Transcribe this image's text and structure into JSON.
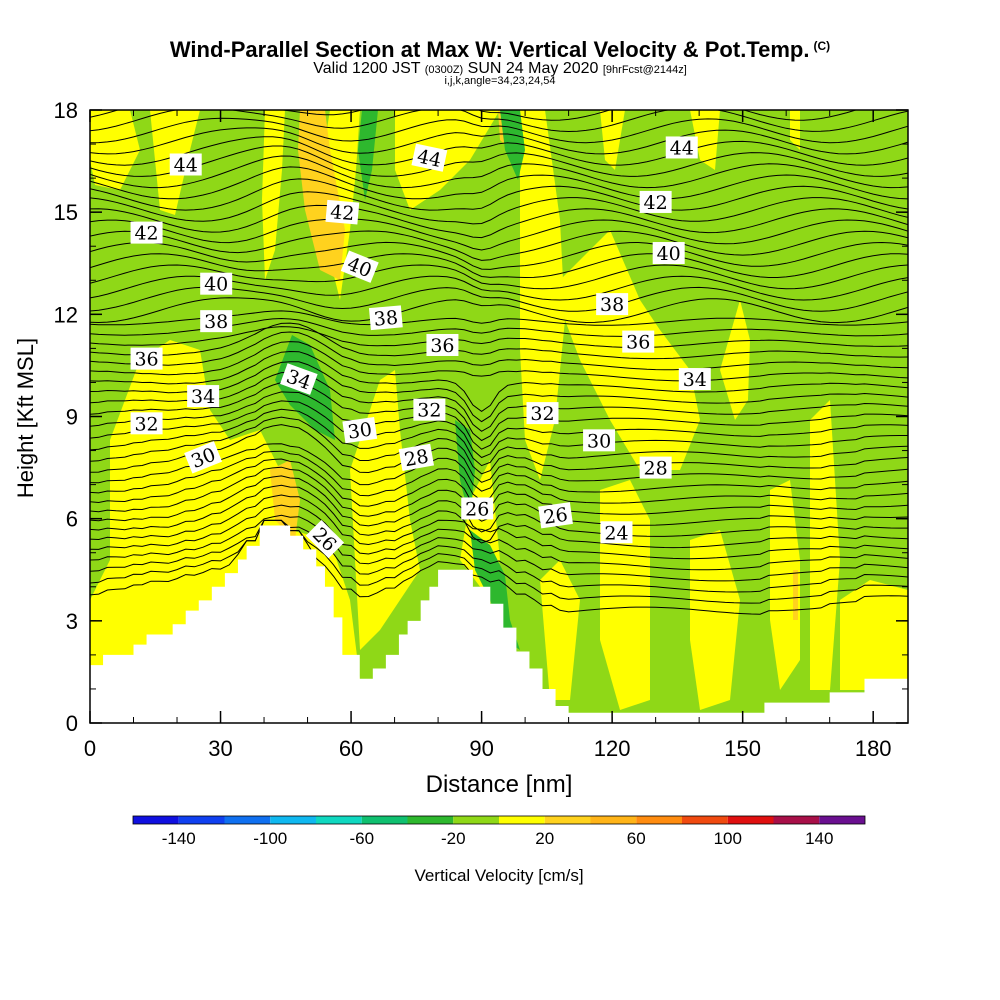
{
  "title": {
    "main": "Wind-Parallel Section at Max W: Vertical Velocity & Pot.Temp.",
    "main_tag": "(C)",
    "valid_prefix": "Valid 1200 JST",
    "valid_utc": "(0300Z)",
    "valid_date": "SUN 24 May 2020",
    "forecast": "[9hrFcst@2144z]",
    "indices": "i,j,k,angle=34,23,24,54"
  },
  "chart_data": {
    "type": "contour",
    "xlabel": "Distance [nm]",
    "ylabel": "Height [Kft MSL]",
    "xlim": [
      0,
      188
    ],
    "ylim": [
      0,
      18
    ],
    "x_ticks": [
      "0",
      "30",
      "60",
      "90",
      "120",
      "150",
      "180"
    ],
    "y_ticks": [
      "0",
      "3",
      "6",
      "9",
      "12",
      "15",
      "18"
    ],
    "colorbar": {
      "label": "Vertical Velocity [cm/s]",
      "ticks": [
        "-140",
        "-100",
        "-60",
        "-20",
        "20",
        "60",
        "100",
        "140"
      ],
      "bins": [
        {
          "from": -160,
          "to": -140,
          "color": "#1010e0"
        },
        {
          "from": -140,
          "to": -120,
          "color": "#1040f0"
        },
        {
          "from": -120,
          "to": -100,
          "color": "#1070f0"
        },
        {
          "from": -100,
          "to": -80,
          "color": "#10b8f0"
        },
        {
          "from": -80,
          "to": -60,
          "color": "#10d8c0"
        },
        {
          "from": -60,
          "to": -40,
          "color": "#10c070"
        },
        {
          "from": -40,
          "to": -20,
          "color": "#2eb82e"
        },
        {
          "from": -20,
          "to": 0,
          "color": "#8fd817"
        },
        {
          "from": 0,
          "to": 20,
          "color": "#ffff00"
        },
        {
          "from": 20,
          "to": 40,
          "color": "#ffd21e"
        },
        {
          "from": 40,
          "to": 60,
          "color": "#ffb418"
        },
        {
          "from": 60,
          "to": 80,
          "color": "#ff8c10"
        },
        {
          "from": 80,
          "to": 100,
          "color": "#f04a10"
        },
        {
          "from": 100,
          "to": 120,
          "color": "#e01010"
        },
        {
          "from": 120,
          "to": 140,
          "color": "#a81048"
        },
        {
          "from": 140,
          "to": 160,
          "color": "#6a1090"
        }
      ]
    },
    "terrain_height_kft": [
      [
        0,
        1.7
      ],
      [
        3,
        1.7
      ],
      [
        3,
        2.0
      ],
      [
        10,
        2.0
      ],
      [
        10,
        2.3
      ],
      [
        13,
        2.3
      ],
      [
        13,
        2.6
      ],
      [
        19,
        2.6
      ],
      [
        19,
        2.9
      ],
      [
        22,
        2.9
      ],
      [
        22,
        3.3
      ],
      [
        25,
        3.3
      ],
      [
        25,
        3.6
      ],
      [
        28,
        3.6
      ],
      [
        28,
        4.0
      ],
      [
        31,
        4.0
      ],
      [
        31,
        4.4
      ],
      [
        34,
        4.4
      ],
      [
        34,
        4.8
      ],
      [
        36,
        4.8
      ],
      [
        36,
        5.2
      ],
      [
        39,
        5.2
      ],
      [
        39,
        5.8
      ],
      [
        46,
        5.8
      ],
      [
        46,
        5.5
      ],
      [
        49,
        5.5
      ],
      [
        49,
        5.1
      ],
      [
        52,
        5.1
      ],
      [
        52,
        4.6
      ],
      [
        54,
        4.6
      ],
      [
        54,
        4.0
      ],
      [
        56,
        4.0
      ],
      [
        56,
        3.1
      ],
      [
        58,
        3.1
      ],
      [
        58,
        2.0
      ],
      [
        62,
        2.0
      ],
      [
        62,
        1.3
      ],
      [
        65,
        1.3
      ],
      [
        65,
        1.6
      ],
      [
        68,
        1.6
      ],
      [
        68,
        2.0
      ],
      [
        71,
        2.0
      ],
      [
        71,
        2.6
      ],
      [
        73,
        2.6
      ],
      [
        73,
        3.0
      ],
      [
        76,
        3.0
      ],
      [
        76,
        3.6
      ],
      [
        78,
        3.6
      ],
      [
        78,
        4.0
      ],
      [
        80,
        4.0
      ],
      [
        80,
        4.5
      ],
      [
        88,
        4.5
      ],
      [
        88,
        4.0
      ],
      [
        92,
        4.0
      ],
      [
        92,
        3.5
      ],
      [
        95,
        3.5
      ],
      [
        95,
        2.8
      ],
      [
        98,
        2.8
      ],
      [
        98,
        2.1
      ],
      [
        101,
        2.1
      ],
      [
        101,
        1.6
      ],
      [
        104,
        1.6
      ],
      [
        104,
        1.0
      ],
      [
        107,
        1.0
      ],
      [
        107,
        0.5
      ],
      [
        110,
        0.5
      ],
      [
        110,
        0.3
      ],
      [
        155,
        0.3
      ],
      [
        155,
        0.6
      ],
      [
        170,
        0.6
      ],
      [
        170,
        0.9
      ],
      [
        178,
        0.9
      ],
      [
        178,
        1.3
      ],
      [
        188,
        1.3
      ]
    ],
    "theta_contours_C": [
      24,
      26,
      28,
      30,
      32,
      34,
      36,
      38,
      40,
      42,
      44
    ],
    "contour_labels": [
      {
        "text": "44",
        "x": 22,
        "y": 16.4,
        "angle": 0
      },
      {
        "text": "44",
        "x": 78,
        "y": 16.6,
        "angle": 12
      },
      {
        "text": "44",
        "x": 136,
        "y": 16.9,
        "angle": 0
      },
      {
        "text": "42",
        "x": 13,
        "y": 14.4,
        "angle": 0
      },
      {
        "text": "42",
        "x": 58,
        "y": 15.0,
        "angle": 5
      },
      {
        "text": "42",
        "x": 130,
        "y": 15.3,
        "angle": 0
      },
      {
        "text": "40",
        "x": 29,
        "y": 12.9,
        "angle": 0
      },
      {
        "text": "40",
        "x": 62,
        "y": 13.4,
        "angle": 22
      },
      {
        "text": "40",
        "x": 133,
        "y": 13.8,
        "angle": 0
      },
      {
        "text": "38",
        "x": 29,
        "y": 11.8,
        "angle": 0
      },
      {
        "text": "38",
        "x": 68,
        "y": 11.9,
        "angle": -5
      },
      {
        "text": "38",
        "x": 120,
        "y": 12.3,
        "angle": 0
      },
      {
        "text": "36",
        "x": 13,
        "y": 10.7,
        "angle": 0
      },
      {
        "text": "36",
        "x": 81,
        "y": 11.1,
        "angle": 0
      },
      {
        "text": "36",
        "x": 126,
        "y": 11.2,
        "angle": 0
      },
      {
        "text": "34",
        "x": 26,
        "y": 9.6,
        "angle": 0
      },
      {
        "text": "34",
        "x": 48,
        "y": 10.1,
        "angle": 20
      },
      {
        "text": "34",
        "x": 139,
        "y": 10.1,
        "angle": 0
      },
      {
        "text": "32",
        "x": 13,
        "y": 8.8,
        "angle": 0
      },
      {
        "text": "32",
        "x": 78,
        "y": 9.2,
        "angle": 0
      },
      {
        "text": "32",
        "x": 104,
        "y": 9.1,
        "angle": 0
      },
      {
        "text": "30",
        "x": 26,
        "y": 7.8,
        "angle": -22
      },
      {
        "text": "30",
        "x": 62,
        "y": 8.6,
        "angle": -8
      },
      {
        "text": "30",
        "x": 117,
        "y": 8.3,
        "angle": 0
      },
      {
        "text": "28",
        "x": 75,
        "y": 7.8,
        "angle": -10
      },
      {
        "text": "28",
        "x": 130,
        "y": 7.5,
        "angle": 0
      },
      {
        "text": "26",
        "x": 54,
        "y": 5.4,
        "angle": 45
      },
      {
        "text": "26",
        "x": 89,
        "y": 6.3,
        "angle": 0
      },
      {
        "text": "26",
        "x": 107,
        "y": 6.1,
        "angle": -8
      },
      {
        "text": "24",
        "x": 121,
        "y": 5.6,
        "angle": 0
      }
    ]
  }
}
